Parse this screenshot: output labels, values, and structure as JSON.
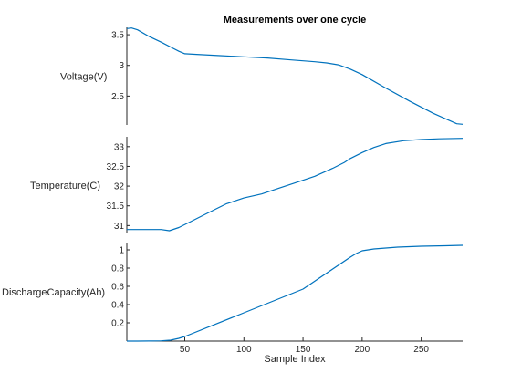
{
  "chart_data": [
    {
      "type": "line",
      "title": "Measurements over one cycle",
      "ylabel": "Voltage(V)",
      "xlim": [
        1,
        285
      ],
      "ylim": [
        2.03,
        3.62
      ],
      "yticks": [
        "2.5",
        "3",
        "3.5"
      ],
      "grid": false,
      "color": "#0072bd",
      "x": [
        1,
        5,
        10,
        20,
        30,
        40,
        45,
        50,
        60,
        80,
        100,
        120,
        140,
        160,
        170,
        180,
        190,
        200,
        220,
        240,
        260,
        280,
        285
      ],
      "y": [
        3.6,
        3.61,
        3.58,
        3.47,
        3.38,
        3.28,
        3.23,
        3.19,
        3.18,
        3.16,
        3.14,
        3.12,
        3.09,
        3.06,
        3.04,
        3.01,
        2.94,
        2.85,
        2.63,
        2.42,
        2.22,
        2.05,
        2.04
      ]
    },
    {
      "type": "line",
      "ylabel": "Temperature(C)",
      "xlim": [
        1,
        285
      ],
      "ylim": [
        30.8,
        33.25
      ],
      "yticks": [
        "31",
        "31.5",
        "32",
        "32.5",
        "33"
      ],
      "grid": false,
      "color": "#0072bd",
      "x": [
        1,
        10,
        20,
        30,
        37,
        45,
        55,
        65,
        75,
        85,
        100,
        115,
        130,
        145,
        160,
        175,
        185,
        190,
        200,
        210,
        220,
        235,
        250,
        265,
        285
      ],
      "y": [
        30.9,
        30.9,
        30.9,
        30.9,
        30.87,
        30.95,
        31.1,
        31.25,
        31.4,
        31.55,
        31.7,
        31.8,
        31.95,
        32.1,
        32.25,
        32.45,
        32.6,
        32.7,
        32.85,
        32.98,
        33.08,
        33.15,
        33.18,
        33.2,
        33.21
      ]
    },
    {
      "type": "line",
      "ylabel": "DischargeCapacity(Ah)",
      "xlabel": "Sample Index",
      "xlim": [
        1,
        285
      ],
      "ylim": [
        0,
        1.08
      ],
      "xticks": [
        50,
        100,
        150,
        200,
        250
      ],
      "yticks": [
        "0.2",
        "0.4",
        "0.6",
        "0.8",
        "1"
      ],
      "grid": false,
      "color": "#0072bd",
      "x": [
        1,
        10,
        20,
        30,
        38,
        45,
        50,
        100,
        150,
        190,
        195,
        200,
        210,
        230,
        250,
        270,
        285
      ],
      "y": [
        0,
        0,
        0.001,
        0.003,
        0.01,
        0.03,
        0.05,
        0.31,
        0.57,
        0.92,
        0.96,
        0.99,
        1.01,
        1.03,
        1.04,
        1.045,
        1.05
      ]
    }
  ]
}
